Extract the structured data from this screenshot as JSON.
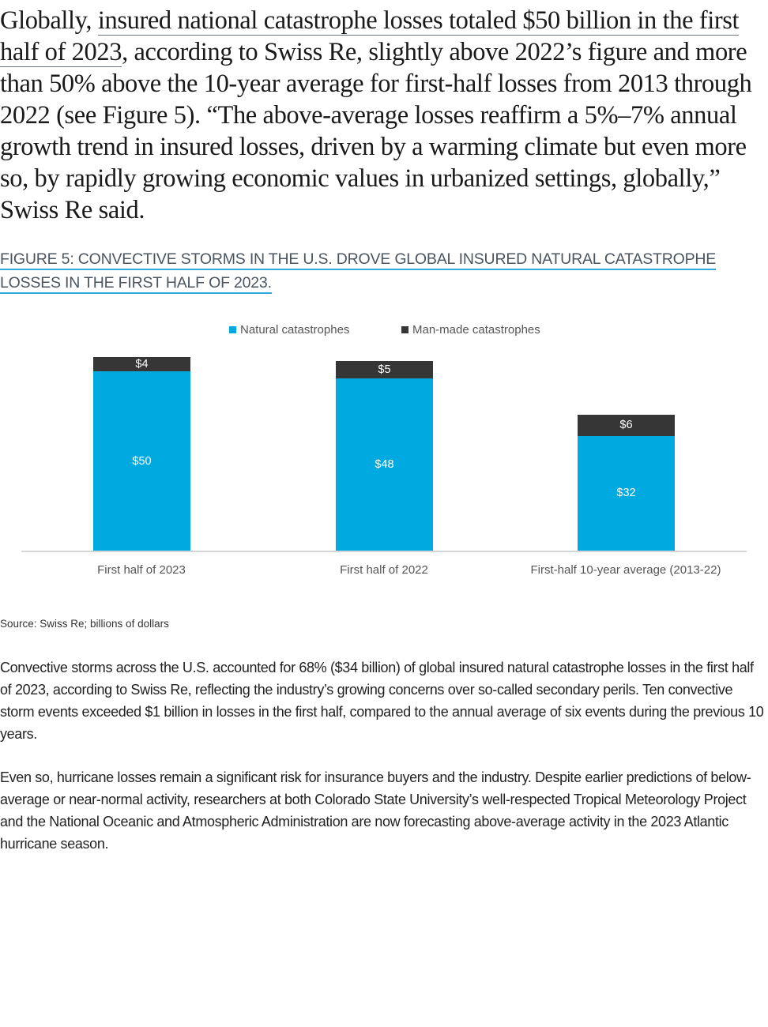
{
  "article": {
    "lead_before": "Globally, ",
    "lead_link": "insured national catastrophe losses totaled $50 billion in the first half of 2023",
    "lead_after": ", according to Swiss Re, slightly above 2022’s figure and more than 50% above the 10-year average for first-half losses from 2013 through 2022 (see Figure 5). “The above-average losses reaffirm a 5%–7% annual growth trend in insured losses, driven by a warming climate but even more so, by rapidly growing economic values in urbanized settings, globally,” Swiss Re said.",
    "figure_title": "FIGURE 5: CONVECTIVE STORMS IN THE U.S. DROVE GLOBAL INSURED NATURAL CATASTROPHE LOSSES IN THE FIRST HALF OF 2023.",
    "source": "Source: Swiss Re; billions of dollars",
    "paragraphs": [
      "Convective storms across the U.S. accounted for 68% ($34 billion) of global insured natural catastrophe losses in the first half of 2023, according to Swiss Re, reflecting the industry’s growing concerns over so-called secondary perils. Ten convective storm events exceeded $1 billion in losses in the first half, compared to the annual average of six events during the previous 10 years.",
      "Even so, hurricane losses remain a significant risk for insurance buyers and the industry. Despite earlier predictions of below-average or near-normal activity, researchers at both Colorado State University’s well-respected Tropical Meteorology Project and the National Oceanic and Atmospheric Administration are now forecasting above-average activity in the 2023 Atlantic hurricane season."
    ]
  },
  "colors": {
    "natural": "#00a9e0",
    "man_made": "#363636",
    "figure_title_underline": "#2fa8e0"
  },
  "chart_data": {
    "type": "bar",
    "stacked": true,
    "title": "FIGURE 5: CONVECTIVE STORMS IN THE U.S. DROVE GLOBAL INSURED NATURAL CATASTROPHE LOSSES IN THE FIRST HALF OF 2023.",
    "categories": [
      "First half of 2023",
      "First half of 2022",
      "First-half 10-year average (2013-22)"
    ],
    "series": [
      {
        "name": "Natural catastrophes",
        "values": [
          50,
          48,
          32
        ],
        "labels": [
          "$50",
          "$48",
          "$32"
        ],
        "color": "#00a9e0"
      },
      {
        "name": "Man-made catastrophes",
        "values": [
          4,
          5,
          6
        ],
        "labels": [
          "$4",
          "$5",
          "$6"
        ],
        "color": "#363636"
      }
    ],
    "xlabel": "",
    "ylabel": "billions of dollars",
    "ylim": [
      0,
      54
    ],
    "grid": false,
    "legend_position": "top"
  }
}
